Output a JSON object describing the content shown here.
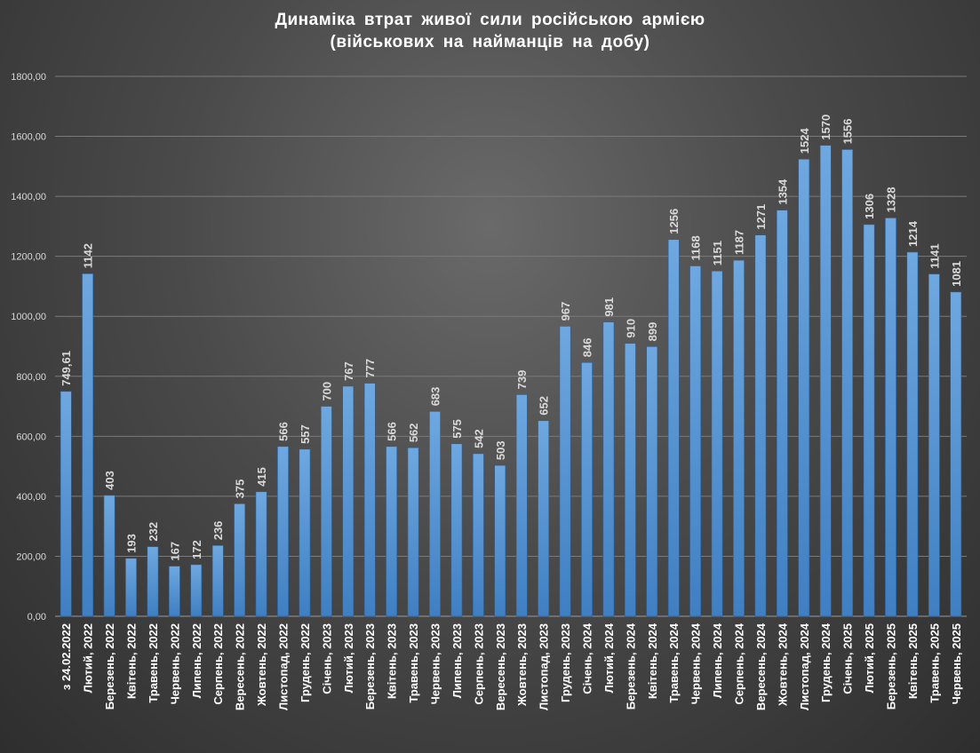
{
  "chart_data": {
    "type": "bar",
    "title_line1": "Динаміка  втрат  живої  сили  російською  армією",
    "title_line2": "(військових  на  найманців  на  добу)",
    "xlabel": "",
    "ylabel": "",
    "ylim": [
      0,
      1800
    ],
    "yticks": [
      "0,00",
      "200,00",
      "400,00",
      "600,00",
      "800,00",
      "1000,00",
      "1200,00",
      "1400,00",
      "1600,00",
      "1800,00"
    ],
    "grid": true,
    "bar_color": "#5b9bd5",
    "categories": [
      "з 24.02.2022",
      "Лютий, 2022",
      "Березень, 2022",
      "Квітень, 2022",
      "Травень, 2022",
      "Червень, 2022",
      "Липень, 2022",
      "Серпень, 2022",
      "Вересень, 2022",
      "Жовтень, 2022",
      "Листопад, 2022",
      "Грудень, 2022",
      "Січень, 2023",
      "Лютий, 2023",
      "Березень, 2023",
      "Квітень, 2023",
      "Травень, 2023",
      "Червень, 2023",
      "Липень, 2023",
      "Серпень, 2023",
      "Вересень, 2023",
      "Жовтень, 2023",
      "Листопад, 2023",
      "Грудень, 2023",
      "Січень, 2024",
      "Лютий, 2024",
      "Березень, 2024",
      "Квітень, 2024",
      "Травень, 2024",
      "Червень, 2024",
      "Липень, 2024",
      "Серпень, 2024",
      "Вересень, 2024",
      "Жовтень, 2024",
      "Листопад, 2024",
      "Грудень, 2024",
      "Січень, 2025",
      "Лютий, 2025",
      "Березень, 2025",
      "Квітень, 2025",
      "Травень, 2025",
      "Червень, 2025"
    ],
    "values": [
      749.61,
      1142,
      403,
      193,
      232,
      167,
      172,
      236,
      375,
      415,
      566,
      557,
      700,
      767,
      777,
      566,
      562,
      683,
      575,
      542,
      503,
      739,
      652,
      967,
      846,
      981,
      910,
      899,
      1256,
      1168,
      1151,
      1187,
      1271,
      1354,
      1524,
      1570,
      1556,
      1306,
      1328,
      1214,
      1141,
      1081
    ],
    "data_labels": [
      "749,61",
      "1142",
      "403",
      "193",
      "232",
      "167",
      "172",
      "236",
      "375",
      "415",
      "566",
      "557",
      "700",
      "767",
      "777",
      "566",
      "562",
      "683",
      "575",
      "542",
      "503",
      "739",
      "652",
      "967",
      "846",
      "981",
      "910",
      "899",
      "1256",
      "1168",
      "1151",
      "1187",
      "1271",
      "1354",
      "1524",
      "1570",
      "1556",
      "1306",
      "1328",
      "1214",
      "1141",
      "1081"
    ]
  }
}
